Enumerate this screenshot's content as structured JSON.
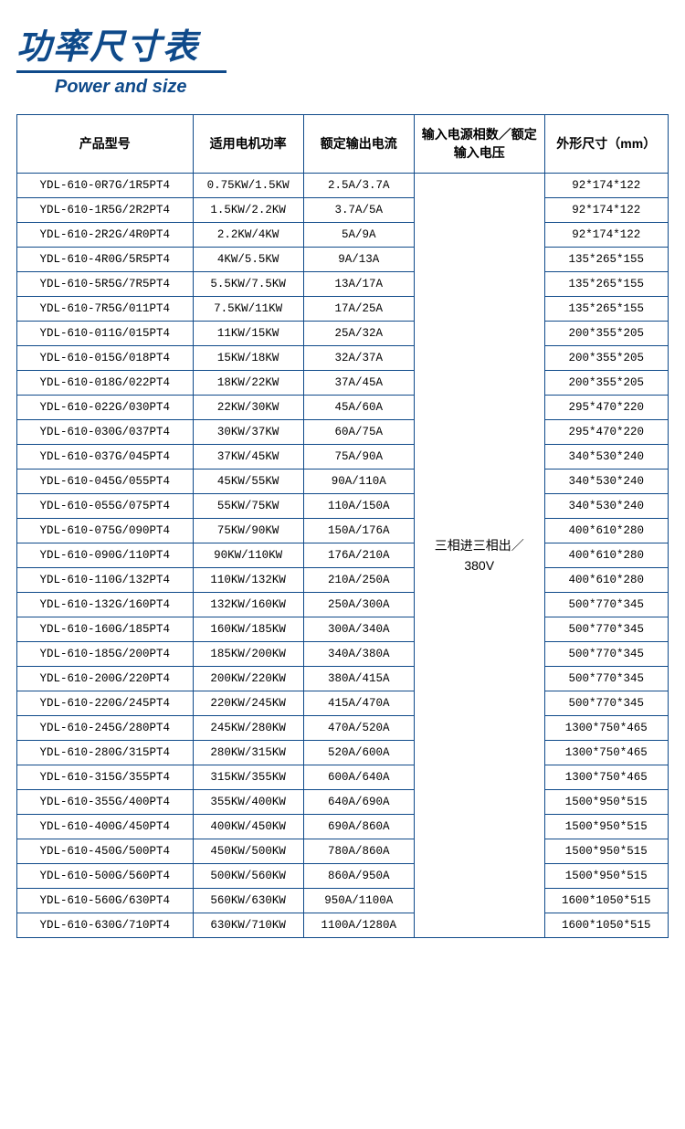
{
  "header": {
    "title_cn": "功率尺寸表",
    "title_en": "Power and size"
  },
  "table": {
    "columns": [
      "产品型号",
      "适用电机功率",
      "额定输出电流",
      "输入电源相数／额定输入电压",
      "外形尺寸（mm）"
    ],
    "merged_cell": "三相进三相出／380V",
    "rows": [
      {
        "model": "YDL-610-0R7G/1R5PT4",
        "power": "0.75KW/1.5KW",
        "current": "2.5A/3.7A",
        "size": "92*174*122"
      },
      {
        "model": "YDL-610-1R5G/2R2PT4",
        "power": "1.5KW/2.2KW",
        "current": "3.7A/5A",
        "size": "92*174*122"
      },
      {
        "model": "YDL-610-2R2G/4R0PT4",
        "power": "2.2KW/4KW",
        "current": "5A/9A",
        "size": "92*174*122"
      },
      {
        "model": "YDL-610-4R0G/5R5PT4",
        "power": "4KW/5.5KW",
        "current": "9A/13A",
        "size": "135*265*155"
      },
      {
        "model": "YDL-610-5R5G/7R5PT4",
        "power": "5.5KW/7.5KW",
        "current": "13A/17A",
        "size": "135*265*155"
      },
      {
        "model": "YDL-610-7R5G/011PT4",
        "power": "7.5KW/11KW",
        "current": "17A/25A",
        "size": "135*265*155"
      },
      {
        "model": "YDL-610-011G/015PT4",
        "power": "11KW/15KW",
        "current": "25A/32A",
        "size": "200*355*205"
      },
      {
        "model": "YDL-610-015G/018PT4",
        "power": "15KW/18KW",
        "current": "32A/37A",
        "size": "200*355*205"
      },
      {
        "model": "YDL-610-018G/022PT4",
        "power": "18KW/22KW",
        "current": "37A/45A",
        "size": "200*355*205"
      },
      {
        "model": "YDL-610-022G/030PT4",
        "power": "22KW/30KW",
        "current": "45A/60A",
        "size": "295*470*220"
      },
      {
        "model": "YDL-610-030G/037PT4",
        "power": "30KW/37KW",
        "current": "60A/75A",
        "size": "295*470*220"
      },
      {
        "model": "YDL-610-037G/045PT4",
        "power": "37KW/45KW",
        "current": "75A/90A",
        "size": "340*530*240"
      },
      {
        "model": "YDL-610-045G/055PT4",
        "power": "45KW/55KW",
        "current": "90A/110A",
        "size": "340*530*240"
      },
      {
        "model": "YDL-610-055G/075PT4",
        "power": "55KW/75KW",
        "current": "110A/150A",
        "size": "340*530*240"
      },
      {
        "model": "YDL-610-075G/090PT4",
        "power": "75KW/90KW",
        "current": "150A/176A",
        "size": "400*610*280"
      },
      {
        "model": "YDL-610-090G/110PT4",
        "power": "90KW/110KW",
        "current": "176A/210A",
        "size": "400*610*280"
      },
      {
        "model": "YDL-610-110G/132PT4",
        "power": "110KW/132KW",
        "current": "210A/250A",
        "size": "400*610*280"
      },
      {
        "model": "YDL-610-132G/160PT4",
        "power": "132KW/160KW",
        "current": "250A/300A",
        "size": "500*770*345"
      },
      {
        "model": "YDL-610-160G/185PT4",
        "power": "160KW/185KW",
        "current": "300A/340A",
        "size": "500*770*345"
      },
      {
        "model": "YDL-610-185G/200PT4",
        "power": "185KW/200KW",
        "current": "340A/380A",
        "size": "500*770*345"
      },
      {
        "model": "YDL-610-200G/220PT4",
        "power": "200KW/220KW",
        "current": "380A/415A",
        "size": "500*770*345"
      },
      {
        "model": "YDL-610-220G/245PT4",
        "power": "220KW/245KW",
        "current": "415A/470A",
        "size": "500*770*345"
      },
      {
        "model": "YDL-610-245G/280PT4",
        "power": "245KW/280KW",
        "current": "470A/520A",
        "size": "1300*750*465"
      },
      {
        "model": "YDL-610-280G/315PT4",
        "power": "280KW/315KW",
        "current": "520A/600A",
        "size": "1300*750*465"
      },
      {
        "model": "YDL-610-315G/355PT4",
        "power": "315KW/355KW",
        "current": "600A/640A",
        "size": "1300*750*465"
      },
      {
        "model": "YDL-610-355G/400PT4",
        "power": "355KW/400KW",
        "current": "640A/690A",
        "size": "1500*950*515"
      },
      {
        "model": "YDL-610-400G/450PT4",
        "power": "400KW/450KW",
        "current": "690A/860A",
        "size": "1500*950*515"
      },
      {
        "model": "YDL-610-450G/500PT4",
        "power": "450KW/500KW",
        "current": "780A/860A",
        "size": "1500*950*515"
      },
      {
        "model": "YDL-610-500G/560PT4",
        "power": "500KW/560KW",
        "current": "860A/950A",
        "size": "1500*950*515"
      },
      {
        "model": "YDL-610-560G/630PT4",
        "power": "560KW/630KW",
        "current": "950A/1100A",
        "size": "1600*1050*515"
      },
      {
        "model": "YDL-610-630G/710PT4",
        "power": "630KW/710KW",
        "current": "1100A/1280A",
        "size": "1600*1050*515"
      }
    ]
  }
}
